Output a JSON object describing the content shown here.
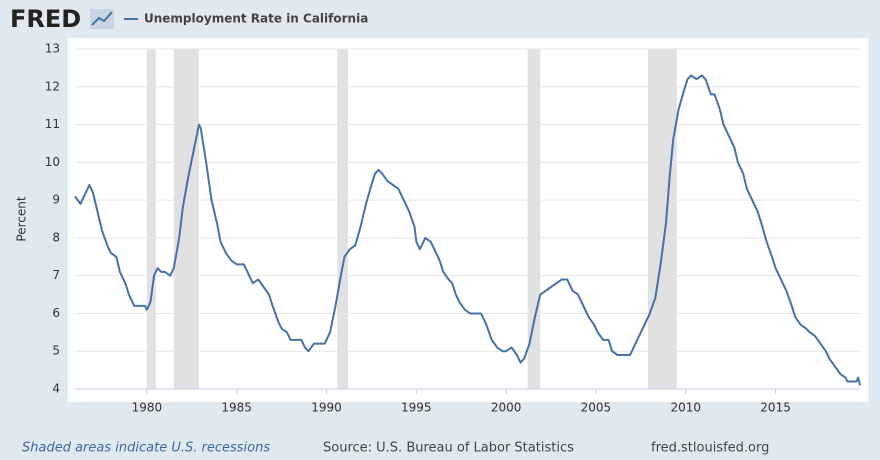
{
  "header": {
    "logo": "FRED"
  },
  "chart_data": {
    "type": "line",
    "ylabel": "Percent",
    "x": [
      1976.0,
      1976.3,
      1976.6,
      1976.8,
      1977.0,
      1977.3,
      1977.5,
      1977.8,
      1978.0,
      1978.3,
      1978.5,
      1978.8,
      1979.0,
      1979.3,
      1979.6,
      1979.9,
      1980.0,
      1980.2,
      1980.4,
      1980.6,
      1980.8,
      1981.0,
      1981.3,
      1981.5,
      1981.8,
      1982.0,
      1982.3,
      1982.6,
      1982.9,
      1983.0,
      1983.3,
      1983.6,
      1983.9,
      1984.1,
      1984.4,
      1984.7,
      1985.0,
      1985.4,
      1985.7,
      1985.9,
      1986.2,
      1986.5,
      1986.8,
      1987.0,
      1987.3,
      1987.5,
      1987.8,
      1988.0,
      1988.3,
      1988.6,
      1988.8,
      1989.0,
      1989.3,
      1989.6,
      1989.9,
      1990.2,
      1990.5,
      1990.8,
      1991.0,
      1991.3,
      1991.6,
      1991.9,
      1992.2,
      1992.5,
      1992.7,
      1992.9,
      1993.1,
      1993.4,
      1993.7,
      1994.0,
      1994.3,
      1994.6,
      1994.9,
      1995.0,
      1995.2,
      1995.5,
      1995.8,
      1996.0,
      1996.3,
      1996.5,
      1996.8,
      1997.0,
      1997.2,
      1997.4,
      1997.7,
      1998.0,
      1998.3,
      1998.6,
      1998.9,
      1999.2,
      1999.5,
      1999.8,
      2000.0,
      2000.3,
      2000.6,
      2000.8,
      2001.0,
      2001.3,
      2001.6,
      2001.9,
      2002.2,
      2002.5,
      2002.8,
      2003.1,
      2003.4,
      2003.7,
      2004.0,
      2004.3,
      2004.6,
      2004.9,
      2005.1,
      2005.4,
      2005.7,
      2005.9,
      2006.2,
      2006.6,
      2006.9,
      2007.1,
      2007.4,
      2007.7,
      2008.0,
      2008.3,
      2008.6,
      2008.9,
      2009.1,
      2009.3,
      2009.6,
      2009.9,
      2010.1,
      2010.3,
      2010.6,
      2010.9,
      2011.1,
      2011.4,
      2011.6,
      2011.9,
      2012.1,
      2012.4,
      2012.7,
      2012.9,
      2013.2,
      2013.4,
      2013.7,
      2014.0,
      2014.2,
      2014.5,
      2014.8,
      2015.0,
      2015.3,
      2015.6,
      2015.9,
      2016.1,
      2016.4,
      2016.7,
      2016.9,
      2017.2,
      2017.5,
      2017.8,
      2018.0,
      2018.3,
      2018.6,
      2018.9,
      2019.0,
      2019.2,
      2019.5,
      2019.6,
      2019.7
    ],
    "series": [
      {
        "name": "Unemployment Rate in California",
        "color": "#4572a7",
        "values": [
          9.1,
          8.9,
          9.2,
          9.4,
          9.2,
          8.6,
          8.2,
          7.8,
          7.6,
          7.5,
          7.1,
          6.8,
          6.5,
          6.2,
          6.2,
          6.2,
          6.1,
          6.3,
          7.0,
          7.2,
          7.1,
          7.1,
          7.0,
          7.2,
          8.0,
          8.8,
          9.6,
          10.3,
          11.0,
          10.9,
          10.0,
          9.0,
          8.4,
          7.9,
          7.6,
          7.4,
          7.3,
          7.3,
          7.0,
          6.8,
          6.9,
          6.7,
          6.5,
          6.2,
          5.8,
          5.6,
          5.5,
          5.3,
          5.3,
          5.3,
          5.1,
          5.0,
          5.2,
          5.2,
          5.2,
          5.5,
          6.2,
          7.0,
          7.5,
          7.7,
          7.8,
          8.3,
          8.9,
          9.4,
          9.7,
          9.8,
          9.7,
          9.5,
          9.4,
          9.3,
          9.0,
          8.7,
          8.3,
          7.9,
          7.7,
          8.0,
          7.9,
          7.7,
          7.4,
          7.1,
          6.9,
          6.8,
          6.5,
          6.3,
          6.1,
          6.0,
          6.0,
          6.0,
          5.7,
          5.3,
          5.1,
          5.0,
          5.0,
          5.1,
          4.9,
          4.7,
          4.8,
          5.2,
          5.9,
          6.5,
          6.6,
          6.7,
          6.8,
          6.9,
          6.9,
          6.6,
          6.5,
          6.2,
          5.9,
          5.7,
          5.5,
          5.3,
          5.3,
          5.0,
          4.9,
          4.9,
          4.9,
          5.1,
          5.4,
          5.7,
          6.0,
          6.4,
          7.3,
          8.4,
          9.6,
          10.6,
          11.4,
          11.9,
          12.2,
          12.3,
          12.2,
          12.3,
          12.2,
          11.8,
          11.8,
          11.4,
          11.0,
          10.7,
          10.4,
          10.0,
          9.7,
          9.3,
          9.0,
          8.7,
          8.4,
          7.9,
          7.5,
          7.2,
          6.9,
          6.6,
          6.2,
          5.9,
          5.7,
          5.6,
          5.5,
          5.4,
          5.2,
          5.0,
          4.8,
          4.6,
          4.4,
          4.3,
          4.2,
          4.2,
          4.2,
          4.3,
          4.1
        ]
      }
    ],
    "recessions": [
      {
        "start": 1980.0,
        "end": 1980.5
      },
      {
        "start": 1981.5,
        "end": 1982.9
      },
      {
        "start": 1990.6,
        "end": 1991.2
      },
      {
        "start": 2001.2,
        "end": 2001.9
      },
      {
        "start": 2007.9,
        "end": 2009.5
      }
    ],
    "recession_color": "#e1e1e1",
    "xlim": [
      1976.0,
      2019.7
    ],
    "xticks": [
      1980,
      1985,
      1990,
      1995,
      2000,
      2005,
      2010,
      2015
    ],
    "ylim": [
      4,
      13
    ],
    "yticks": [
      4,
      5,
      6,
      7,
      8,
      9,
      10,
      11,
      12,
      13
    ],
    "grid": true
  },
  "footer": {
    "note": "Shaded areas indicate U.S. recessions",
    "source": "Source: U.S. Bureau of Labor Statistics",
    "site": "fred.stlouisfed.org"
  }
}
